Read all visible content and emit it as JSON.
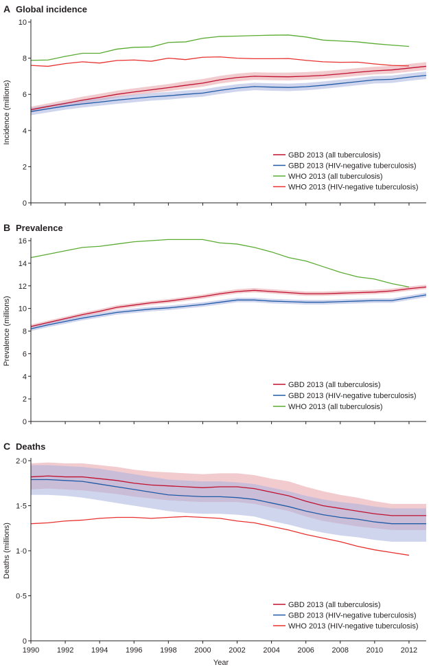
{
  "figure": {
    "xlabel": "Year"
  },
  "chart_data": [
    {
      "type": "line",
      "panel_letter": "A",
      "title": "Global incidence",
      "ylabel": "Incidence (millions)",
      "xlim": [
        1990,
        2013
      ],
      "ylim": [
        0,
        10
      ],
      "xticks": [
        1990,
        1992,
        1994,
        1996,
        1998,
        2000,
        2002,
        2004,
        2006,
        2008,
        2010,
        2012
      ],
      "xtick_labels": [
        "1990",
        "1992",
        "1994",
        "1996",
        "1998",
        "2000",
        "2002",
        "2004",
        "2006",
        "2008",
        "2010",
        "2012"
      ],
      "yticks": [
        0,
        2,
        4,
        6,
        8,
        10
      ],
      "ytick_labels": [
        "0",
        "2",
        "4",
        "6",
        "8",
        "10"
      ],
      "legend_position": "bottom-right",
      "series": [
        {
          "name": "GBD 2013 (all tuberculosis)",
          "color": "#c0102f",
          "band_color": "#e8a0a6",
          "x": [
            1990,
            1991,
            1992,
            1993,
            1994,
            1995,
            1996,
            1997,
            1998,
            1999,
            2000,
            2001,
            2002,
            2003,
            2004,
            2005,
            2006,
            2007,
            2008,
            2009,
            2010,
            2011,
            2012,
            2013
          ],
          "values": [
            5.15,
            5.33,
            5.5,
            5.68,
            5.83,
            6.0,
            6.13,
            6.25,
            6.37,
            6.5,
            6.62,
            6.8,
            6.93,
            7.0,
            6.98,
            6.97,
            7.0,
            7.05,
            7.13,
            7.22,
            7.3,
            7.35,
            7.45,
            7.55
          ],
          "lower": [
            5.0,
            5.17,
            5.33,
            5.5,
            5.65,
            5.82,
            5.95,
            6.07,
            6.18,
            6.3,
            6.42,
            6.6,
            6.72,
            6.8,
            6.78,
            6.77,
            6.8,
            6.86,
            6.93,
            7.02,
            7.1,
            7.15,
            7.25,
            7.35
          ],
          "upper": [
            5.32,
            5.5,
            5.68,
            5.87,
            6.03,
            6.2,
            6.33,
            6.45,
            6.57,
            6.72,
            6.85,
            7.02,
            7.15,
            7.22,
            7.2,
            7.2,
            7.23,
            7.28,
            7.36,
            7.45,
            7.53,
            7.58,
            7.68,
            7.78
          ]
        },
        {
          "name": "GBD 2013 (HIV-negative tuberculosis)",
          "color": "#1f5aa6",
          "band_color": "#a9b3e0",
          "x": [
            1990,
            1991,
            1992,
            1993,
            1994,
            1995,
            1996,
            1997,
            1998,
            1999,
            2000,
            2001,
            2002,
            2003,
            2004,
            2005,
            2006,
            2007,
            2008,
            2009,
            2010,
            2011,
            2012,
            2013
          ],
          "values": [
            5.05,
            5.2,
            5.35,
            5.47,
            5.57,
            5.68,
            5.77,
            5.86,
            5.92,
            6.0,
            6.07,
            6.22,
            6.35,
            6.43,
            6.4,
            6.38,
            6.42,
            6.5,
            6.6,
            6.7,
            6.8,
            6.83,
            6.95,
            7.05
          ],
          "lower": [
            4.85,
            5.0,
            5.15,
            5.27,
            5.37,
            5.47,
            5.56,
            5.65,
            5.71,
            5.8,
            5.87,
            6.02,
            6.15,
            6.23,
            6.2,
            6.18,
            6.22,
            6.3,
            6.4,
            6.5,
            6.6,
            6.63,
            6.75,
            6.85
          ],
          "upper": [
            5.25,
            5.4,
            5.55,
            5.67,
            5.78,
            5.89,
            5.98,
            6.07,
            6.13,
            6.21,
            6.28,
            6.43,
            6.56,
            6.64,
            6.61,
            6.59,
            6.63,
            6.71,
            6.81,
            6.91,
            7.01,
            7.04,
            7.16,
            7.26
          ]
        },
        {
          "name": "WHO 2013 (all tuberculosis)",
          "color": "#5aab32",
          "x": [
            1990,
            1991,
            1992,
            1993,
            1994,
            1995,
            1996,
            1997,
            1998,
            1999,
            2000,
            2001,
            2002,
            2003,
            2004,
            2005,
            2006,
            2007,
            2008,
            2009,
            2010,
            2011,
            2012
          ],
          "values": [
            7.88,
            7.9,
            8.1,
            8.27,
            8.27,
            8.5,
            8.6,
            8.62,
            8.87,
            8.9,
            9.1,
            9.2,
            9.22,
            9.25,
            9.27,
            9.28,
            9.17,
            9.0,
            8.95,
            8.9,
            8.8,
            8.72,
            8.65
          ]
        },
        {
          "name": "WHO 2013 (HIV-negative tuberculosis)",
          "color": "#e8302e",
          "x": [
            1990,
            1991,
            1992,
            1993,
            1994,
            1995,
            1996,
            1997,
            1998,
            1999,
            2000,
            2001,
            2002,
            2003,
            2004,
            2005,
            2006,
            2007,
            2008,
            2009,
            2010,
            2011,
            2012
          ],
          "values": [
            7.6,
            7.55,
            7.7,
            7.8,
            7.73,
            7.87,
            7.9,
            7.83,
            8.0,
            7.92,
            8.05,
            8.07,
            8.0,
            7.97,
            7.97,
            7.98,
            7.88,
            7.8,
            7.77,
            7.78,
            7.68,
            7.6,
            7.57
          ]
        }
      ]
    },
    {
      "type": "line",
      "panel_letter": "B",
      "title": "Prevalence",
      "ylabel": "Prevalence (millions)",
      "xlim": [
        1990,
        2013
      ],
      "ylim": [
        0,
        16
      ],
      "xticks": [
        1990,
        1992,
        1994,
        1996,
        1998,
        2000,
        2002,
        2004,
        2006,
        2008,
        2010,
        2012
      ],
      "xtick_labels": [
        "1990",
        "1992",
        "1994",
        "1996",
        "1998",
        "2000",
        "2002",
        "2004",
        "2006",
        "2008",
        "2010",
        "2012"
      ],
      "yticks": [
        0,
        2,
        4,
        6,
        8,
        10,
        12,
        14,
        16
      ],
      "ytick_labels": [
        "0",
        "2",
        "4",
        "6",
        "8",
        "10",
        "12",
        "14",
        "16"
      ],
      "legend_position": "bottom-right",
      "series": [
        {
          "name": "GBD 2013 (all tuberculosis)",
          "color": "#c0102f",
          "band_color": "#e8a0a6",
          "x": [
            1990,
            1991,
            1992,
            1993,
            1994,
            1995,
            1996,
            1997,
            1998,
            1999,
            2000,
            2001,
            2002,
            2003,
            2004,
            2005,
            2006,
            2007,
            2008,
            2009,
            2010,
            2011,
            2012,
            2013
          ],
          "values": [
            8.4,
            8.75,
            9.1,
            9.45,
            9.75,
            10.1,
            10.3,
            10.5,
            10.65,
            10.85,
            11.05,
            11.3,
            11.5,
            11.6,
            11.5,
            11.4,
            11.3,
            11.3,
            11.35,
            11.4,
            11.45,
            11.55,
            11.75,
            11.9
          ],
          "lower": [
            8.25,
            8.6,
            8.95,
            9.28,
            9.58,
            9.92,
            10.12,
            10.32,
            10.47,
            10.67,
            10.87,
            11.12,
            11.32,
            11.42,
            11.32,
            11.22,
            11.12,
            11.12,
            11.17,
            11.22,
            11.27,
            11.37,
            11.57,
            11.72
          ],
          "upper": [
            8.58,
            8.93,
            9.28,
            9.63,
            9.93,
            10.28,
            10.48,
            10.68,
            10.83,
            11.03,
            11.23,
            11.48,
            11.7,
            11.8,
            11.7,
            11.6,
            11.5,
            11.5,
            11.55,
            11.6,
            11.65,
            11.75,
            11.95,
            12.1
          ]
        },
        {
          "name": "GBD 2013 (HIV-negative tuberculosis)",
          "color": "#1f5aa6",
          "band_color": "#a9b3e0",
          "x": [
            1990,
            1991,
            1992,
            1993,
            1994,
            1995,
            1996,
            1997,
            1998,
            1999,
            2000,
            2001,
            2002,
            2003,
            2004,
            2005,
            2006,
            2007,
            2008,
            2009,
            2010,
            2011,
            2012,
            2013
          ],
          "values": [
            8.2,
            8.55,
            8.85,
            9.15,
            9.4,
            9.65,
            9.8,
            9.95,
            10.05,
            10.2,
            10.35,
            10.55,
            10.75,
            10.75,
            10.65,
            10.6,
            10.55,
            10.55,
            10.6,
            10.65,
            10.7,
            10.7,
            10.95,
            11.2
          ],
          "lower": [
            8.0,
            8.35,
            8.65,
            8.95,
            9.2,
            9.45,
            9.6,
            9.75,
            9.85,
            10.0,
            10.15,
            10.35,
            10.55,
            10.55,
            10.45,
            10.4,
            10.35,
            10.35,
            10.4,
            10.45,
            10.5,
            10.5,
            10.75,
            11.0
          ],
          "upper": [
            8.4,
            8.75,
            9.05,
            9.35,
            9.6,
            9.85,
            10.0,
            10.15,
            10.25,
            10.4,
            10.55,
            10.75,
            10.95,
            10.95,
            10.85,
            10.8,
            10.75,
            10.75,
            10.8,
            10.85,
            10.9,
            10.9,
            11.15,
            11.4
          ]
        },
        {
          "name": "WHO 2013 (all tuberculosis)",
          "color": "#5aab32",
          "x": [
            1990,
            1991,
            1992,
            1993,
            1994,
            1995,
            1996,
            1997,
            1998,
            1999,
            2000,
            2001,
            2002,
            2003,
            2004,
            2005,
            2006,
            2007,
            2008,
            2009,
            2010,
            2011,
            2012
          ],
          "values": [
            14.5,
            14.8,
            15.1,
            15.4,
            15.5,
            15.7,
            15.9,
            16.0,
            16.1,
            16.1,
            16.1,
            15.8,
            15.7,
            15.4,
            15.0,
            14.5,
            14.2,
            13.7,
            13.2,
            12.8,
            12.6,
            12.2,
            11.9
          ]
        }
      ]
    },
    {
      "type": "line",
      "panel_letter": "C",
      "title": "Deaths",
      "ylabel": "Deaths (millions)",
      "xlim": [
        1990,
        2013
      ],
      "ylim": [
        0,
        2
      ],
      "xticks": [
        1990,
        1992,
        1994,
        1996,
        1998,
        2000,
        2002,
        2004,
        2006,
        2008,
        2010,
        2012
      ],
      "xtick_labels": [
        "1990",
        "1992",
        "1994",
        "1996",
        "1998",
        "2000",
        "2002",
        "2004",
        "2006",
        "2008",
        "2010",
        "2012"
      ],
      "yticks": [
        0,
        0.5,
        1,
        1.5,
        2
      ],
      "ytick_labels": [
        "0",
        "0·5",
        "1·0",
        "1·5",
        "2·0"
      ],
      "legend_position": "bottom-right",
      "series": [
        {
          "name": "GBD 2013 (all tuberculosis)",
          "color": "#c0102f",
          "band_color": "#e8a0a6",
          "x": [
            1990,
            1991,
            1992,
            1993,
            1994,
            1995,
            1996,
            1997,
            1998,
            1999,
            2000,
            2001,
            2002,
            2003,
            2004,
            2005,
            2006,
            2007,
            2008,
            2009,
            2010,
            2011,
            2012,
            2013
          ],
          "values": [
            1.82,
            1.83,
            1.82,
            1.82,
            1.8,
            1.78,
            1.75,
            1.73,
            1.72,
            1.71,
            1.7,
            1.71,
            1.71,
            1.69,
            1.65,
            1.61,
            1.55,
            1.5,
            1.47,
            1.44,
            1.41,
            1.39,
            1.39,
            1.39
          ],
          "lower": [
            1.68,
            1.69,
            1.68,
            1.67,
            1.65,
            1.63,
            1.6,
            1.58,
            1.56,
            1.55,
            1.54,
            1.54,
            1.54,
            1.52,
            1.48,
            1.44,
            1.38,
            1.33,
            1.3,
            1.27,
            1.25,
            1.23,
            1.23,
            1.23
          ],
          "upper": [
            1.97,
            1.98,
            1.97,
            1.97,
            1.95,
            1.93,
            1.9,
            1.88,
            1.87,
            1.86,
            1.85,
            1.86,
            1.86,
            1.84,
            1.8,
            1.77,
            1.71,
            1.66,
            1.62,
            1.59,
            1.55,
            1.52,
            1.52,
            1.52
          ]
        },
        {
          "name": "GBD 2013 (HIV-negative tuberculosis)",
          "color": "#1f5aa6",
          "band_color": "#a9b3e0",
          "x": [
            1990,
            1991,
            1992,
            1993,
            1994,
            1995,
            1996,
            1997,
            1998,
            1999,
            2000,
            2001,
            2002,
            2003,
            2004,
            2005,
            2006,
            2007,
            2008,
            2009,
            2010,
            2011,
            2012,
            2013
          ],
          "values": [
            1.79,
            1.79,
            1.78,
            1.77,
            1.74,
            1.71,
            1.68,
            1.65,
            1.62,
            1.61,
            1.6,
            1.6,
            1.59,
            1.57,
            1.53,
            1.49,
            1.44,
            1.4,
            1.37,
            1.35,
            1.32,
            1.3,
            1.3,
            1.3
          ],
          "lower": [
            1.62,
            1.62,
            1.61,
            1.59,
            1.56,
            1.53,
            1.5,
            1.47,
            1.44,
            1.42,
            1.41,
            1.41,
            1.4,
            1.38,
            1.33,
            1.29,
            1.24,
            1.2,
            1.17,
            1.15,
            1.12,
            1.1,
            1.1,
            1.1
          ],
          "upper": [
            1.95,
            1.95,
            1.94,
            1.93,
            1.91,
            1.88,
            1.85,
            1.82,
            1.79,
            1.78,
            1.77,
            1.77,
            1.76,
            1.74,
            1.7,
            1.66,
            1.61,
            1.57,
            1.54,
            1.52,
            1.49,
            1.47,
            1.47,
            1.47
          ]
        },
        {
          "name": "WHO 2013 (HIV-negative tuberculosis)",
          "color": "#e8302e",
          "x": [
            1990,
            1991,
            1992,
            1993,
            1994,
            1995,
            1996,
            1997,
            1998,
            1999,
            2000,
            2001,
            2002,
            2003,
            2004,
            2005,
            2006,
            2007,
            2008,
            2009,
            2010,
            2011,
            2012
          ],
          "values": [
            1.3,
            1.31,
            1.33,
            1.34,
            1.36,
            1.37,
            1.37,
            1.36,
            1.37,
            1.38,
            1.37,
            1.36,
            1.33,
            1.31,
            1.27,
            1.23,
            1.18,
            1.14,
            1.1,
            1.05,
            1.01,
            0.98,
            0.95
          ]
        }
      ]
    }
  ]
}
